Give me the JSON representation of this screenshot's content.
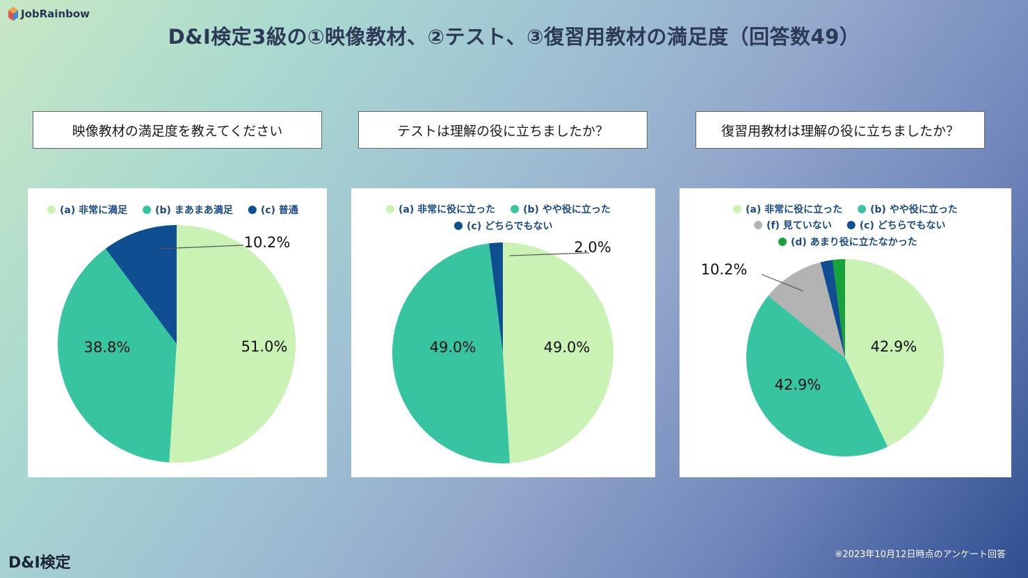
{
  "brand": {
    "logo_text": "JobRainbow",
    "footer_logo": "D&I検定"
  },
  "title": "D&I検定3級の①映像教材、②テスト、③復習用教材の満足度（回答数49）",
  "footnote": "※2023年10月12日時点のアンケート回答",
  "colors": {
    "very": "#c9f2b4",
    "somewhat": "#36c5a0",
    "normal": "#0e4e91",
    "notseen": "#b3b3b3",
    "notmuch": "#17a33a",
    "legend_text": "#1a4a86"
  },
  "chart_data": [
    {
      "type": "pie",
      "title": "映像教材の満足度を教えてください",
      "legend": [
        "(a) 非常に満足",
        "(b) まあまあ満足",
        "(c) 普通"
      ],
      "series": [
        {
          "name": "(a) 非常に満足",
          "value": 51.0,
          "label": "51.0%",
          "color": "#c9f2b4"
        },
        {
          "name": "(b) まあまあ満足",
          "value": 38.8,
          "label": "38.8%",
          "color": "#36c5a0"
        },
        {
          "name": "(c) 普通",
          "value": 10.2,
          "label": "10.2%",
          "color": "#0e4e91"
        }
      ]
    },
    {
      "type": "pie",
      "title": "テストは理解の役に立ちましたか？",
      "legend": [
        "(a) 非常に役に立った",
        "(b) やや役に立った",
        "(c) どちらでもない"
      ],
      "series": [
        {
          "name": "(a) 非常に役に立った",
          "value": 49.0,
          "label": "49.0%",
          "color": "#c9f2b4"
        },
        {
          "name": "(b) やや役に立った",
          "value": 49.0,
          "label": "49.0%",
          "color": "#36c5a0"
        },
        {
          "name": "(c) どちらでもない",
          "value": 2.0,
          "label": "2.0%",
          "color": "#0e4e91"
        }
      ]
    },
    {
      "type": "pie",
      "title": "復習用教材は理解の役に立ちましたか？",
      "legend": [
        "(a) 非常に役に立った",
        "(b) やや役に立った",
        "(f) 見ていない",
        "(c) どちらでもない",
        "(d) あまり役に立たなかった"
      ],
      "series": [
        {
          "name": "(a) 非常に役に立った",
          "value": 42.9,
          "label": "42.9%",
          "color": "#c9f2b4"
        },
        {
          "name": "(b) やや役に立った",
          "value": 42.9,
          "label": "42.9%",
          "color": "#36c5a0"
        },
        {
          "name": "(f) 見ていない",
          "value": 10.2,
          "label": "10.2%",
          "color": "#b3b3b3"
        },
        {
          "name": "(c) どちらでもない",
          "value": 2.0,
          "label": "",
          "color": "#0e4e91"
        },
        {
          "name": "(d) あまり役に立たなかった",
          "value": 2.0,
          "label": "",
          "color": "#17a33a"
        }
      ]
    }
  ]
}
